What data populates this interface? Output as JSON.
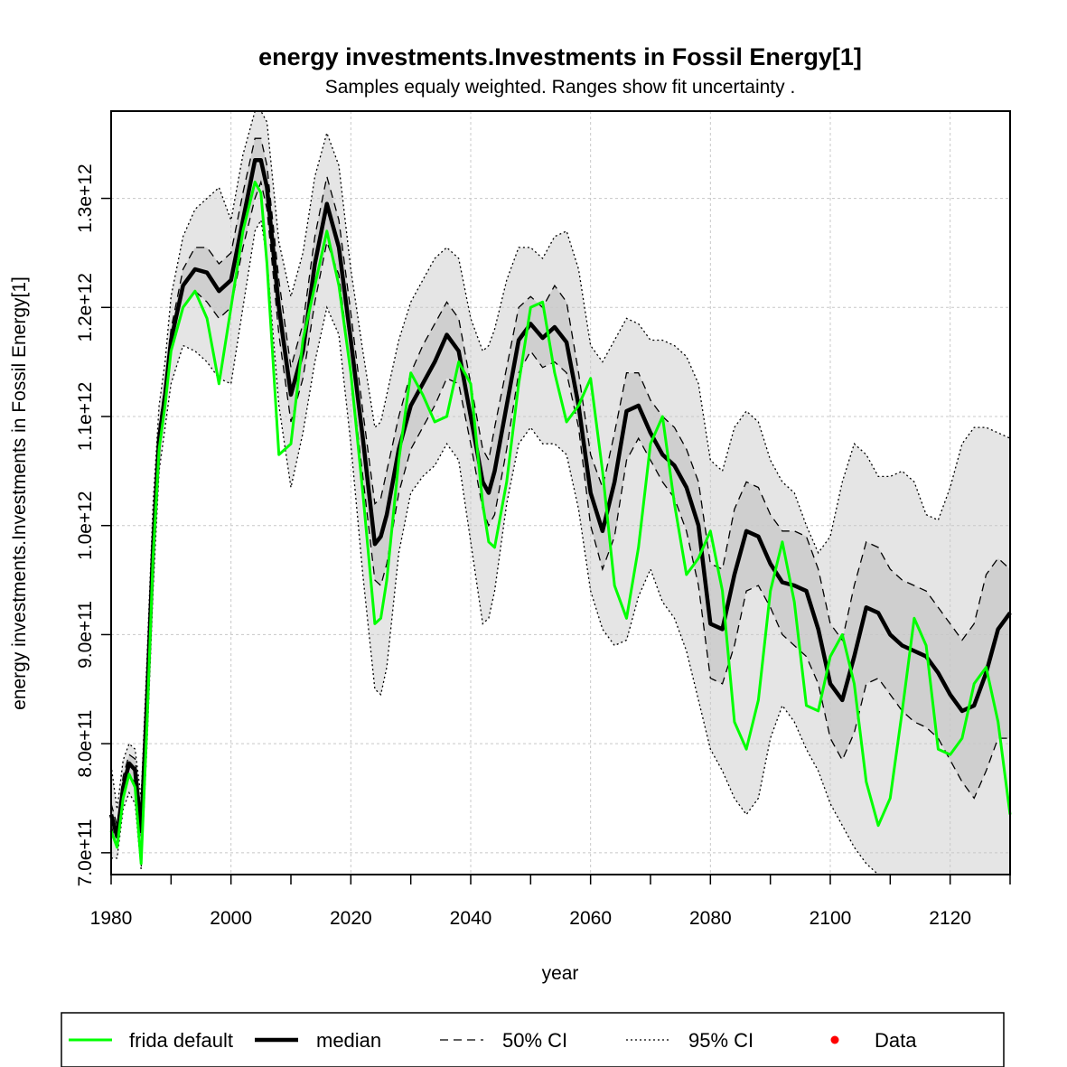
{
  "chart_data": {
    "type": "line",
    "title": "energy investments.Investments in Fossil Energy[1]",
    "subtitle": "Samples equaly weighted. Ranges show  fit uncertainty .",
    "xlabel": "year",
    "ylabel": "energy investments.Investments in Fossil Energy[1]",
    "xlim": [
      1980,
      2130
    ],
    "ylim": [
      680000000000.0,
      1380000000000.0
    ],
    "x_ticks": [
      1980,
      2000,
      2020,
      2040,
      2060,
      2080,
      2100,
      2120
    ],
    "x_tick_labels": [
      "1980",
      "2000",
      "2020",
      "2040",
      "2060",
      "2080",
      "2100",
      "2120"
    ],
    "y_ticks": [
      700000000000.0,
      800000000000.0,
      900000000000.0,
      1000000000000.0,
      1100000000000.0,
      1200000000000.0,
      1300000000000.0
    ],
    "y_tick_labels": [
      "7.0e+11",
      "8.0e+11",
      "9.0e+11",
      "1.0e+12",
      "1.1e+12",
      "1.2e+12",
      "1.3e+12"
    ],
    "grid": true,
    "legend_position": "bottom",
    "legend": [
      {
        "label": "frida default",
        "style": "green-line"
      },
      {
        "label": "median",
        "style": "thick-black-line"
      },
      {
        "label": "50% CI",
        "style": "dashed"
      },
      {
        "label": "95% CI",
        "style": "dotted"
      },
      {
        "label": "Data",
        "style": "red-dot"
      }
    ],
    "colors": {
      "frida": "#00ff00",
      "median": "#000000",
      "band95": "#e5e5e5",
      "band50": "#cfcfcf",
      "data": "#ff0000"
    },
    "x": [
      1980,
      1981,
      1982,
      1983,
      1984,
      1985,
      1986,
      1987,
      1988,
      1989,
      1990,
      1992,
      1994,
      1996,
      1998,
      2000,
      2002,
      2004,
      2005,
      2006,
      2008,
      2010,
      2012,
      2014,
      2016,
      2018,
      2020,
      2022,
      2024,
      2025,
      2026,
      2028,
      2030,
      2032,
      2034,
      2036,
      2038,
      2040,
      2042,
      2043,
      2044,
      2046,
      2048,
      2050,
      2052,
      2054,
      2056,
      2058,
      2060,
      2062,
      2064,
      2066,
      2068,
      2070,
      2072,
      2074,
      2076,
      2078,
      2080,
      2082,
      2084,
      2086,
      2088,
      2090,
      2092,
      2094,
      2096,
      2098,
      2100,
      2102,
      2104,
      2106,
      2108,
      2110,
      2112,
      2114,
      2116,
      2118,
      2120,
      2122,
      2124,
      2126,
      2128,
      2130
    ],
    "series": [
      {
        "name": "median",
        "values": [
          735000000000.0,
          715000000000.0,
          760000000000.0,
          782000000000.0,
          776000000000.0,
          720000000000.0,
          840000000000.0,
          980000000000.0,
          1080000000000.0,
          1120000000000.0,
          1170000000000.0,
          1220000000000.0,
          1235000000000.0,
          1232000000000.0,
          1215000000000.0,
          1225000000000.0,
          1280000000000.0,
          1335000000000.0,
          1335000000000.0,
          1310000000000.0,
          1200000000000.0,
          1120000000000.0,
          1160000000000.0,
          1240000000000.0,
          1295000000000.0,
          1255000000000.0,
          1170000000000.0,
          1080000000000.0,
          983000000000.0,
          990000000000.0,
          1010000000000.0,
          1070000000000.0,
          1110000000000.0,
          1130000000000.0,
          1150000000000.0,
          1175000000000.0,
          1160000000000.0,
          1100000000000.0,
          1040000000000.0,
          1030000000000.0,
          1050000000000.0,
          1110000000000.0,
          1170000000000.0,
          1185000000000.0,
          1172000000000.0,
          1182000000000.0,
          1168000000000.0,
          1110000000000.0,
          1030000000000.0,
          995000000000.0,
          1040000000000.0,
          1105000000000.0,
          1110000000000.0,
          1085000000000.0,
          1065000000000.0,
          1055000000000.0,
          1035000000000.0,
          1000000000000.0,
          910000000000.0,
          905000000000.0,
          955000000000.0,
          995000000000.0,
          990000000000.0,
          965000000000.0,
          948000000000.0,
          945000000000.0,
          940000000000.0,
          905000000000.0,
          855000000000.0,
          840000000000.0,
          880000000000.0,
          925000000000.0,
          920000000000.0,
          900000000000.0,
          890000000000.0,
          885000000000.0,
          880000000000.0,
          865000000000.0,
          845000000000.0,
          830000000000.0,
          835000000000.0,
          865000000000.0,
          905000000000.0,
          920000000000.0
        ]
      },
      {
        "name": "frida default",
        "values": [
          720000000000.0,
          705000000000.0,
          750000000000.0,
          772000000000.0,
          760000000000.0,
          690000000000.0,
          820000000000.0,
          970000000000.0,
          1070000000000.0,
          1110000000000.0,
          1160000000000.0,
          1200000000000.0,
          1215000000000.0,
          1190000000000.0,
          1130000000000.0,
          1200000000000.0,
          1270000000000.0,
          1315000000000.0,
          1305000000000.0,
          1240000000000.0,
          1065000000000.0,
          1075000000000.0,
          1170000000000.0,
          1220000000000.0,
          1270000000000.0,
          1220000000000.0,
          1140000000000.0,
          1030000000000.0,
          910000000000.0,
          915000000000.0,
          950000000000.0,
          1060000000000.0,
          1140000000000.0,
          1120000000000.0,
          1095000000000.0,
          1100000000000.0,
          1150000000000.0,
          1130000000000.0,
          1020000000000.0,
          985000000000.0,
          980000000000.0,
          1040000000000.0,
          1130000000000.0,
          1200000000000.0,
          1205000000000.0,
          1140000000000.0,
          1095000000000.0,
          1110000000000.0,
          1135000000000.0,
          1050000000000.0,
          945000000000.0,
          915000000000.0,
          980000000000.0,
          1075000000000.0,
          1100000000000.0,
          1020000000000.0,
          955000000000.0,
          970000000000.0,
          995000000000.0,
          940000000000.0,
          820000000000.0,
          795000000000.0,
          840000000000.0,
          940000000000.0,
          985000000000.0,
          930000000000.0,
          835000000000.0,
          830000000000.0,
          880000000000.0,
          900000000000.0,
          855000000000.0,
          765000000000.0,
          725000000000.0,
          750000000000.0,
          830000000000.0,
          915000000000.0,
          890000000000.0,
          795000000000.0,
          790000000000.0,
          805000000000.0,
          855000000000.0,
          870000000000.0,
          820000000000.0,
          735000000000.0
        ]
      },
      {
        "name": "50% CI lower",
        "values": [
          725000000000.0,
          705000000000.0,
          750000000000.0,
          770000000000.0,
          765000000000.0,
          705000000000.0,
          820000000000.0,
          960000000000.0,
          1070000000000.0,
          1110000000000.0,
          1160000000000.0,
          1200000000000.0,
          1215000000000.0,
          1205000000000.0,
          1190000000000.0,
          1200000000000.0,
          1255000000000.0,
          1300000000000.0,
          1315000000000.0,
          1290000000000.0,
          1175000000000.0,
          1095000000000.0,
          1135000000000.0,
          1205000000000.0,
          1260000000000.0,
          1230000000000.0,
          1140000000000.0,
          1045000000000.0,
          950000000000.0,
          945000000000.0,
          965000000000.0,
          1030000000000.0,
          1070000000000.0,
          1090000000000.0,
          1110000000000.0,
          1135000000000.0,
          1130000000000.0,
          1075000000000.0,
          1015000000000.0,
          1000000000000.0,
          1010000000000.0,
          1070000000000.0,
          1140000000000.0,
          1160000000000.0,
          1145000000000.0,
          1150000000000.0,
          1140000000000.0,
          1090000000000.0,
          1000000000000.0,
          960000000000.0,
          990000000000.0,
          1060000000000.0,
          1080000000000.0,
          1060000000000.0,
          1040000000000.0,
          1025000000000.0,
          995000000000.0,
          945000000000.0,
          860000000000.0,
          855000000000.0,
          890000000000.0,
          940000000000.0,
          945000000000.0,
          925000000000.0,
          900000000000.0,
          890000000000.0,
          880000000000.0,
          855000000000.0,
          805000000000.0,
          785000000000.0,
          810000000000.0,
          855000000000.0,
          860000000000.0,
          845000000000.0,
          830000000000.0,
          820000000000.0,
          815000000000.0,
          805000000000.0,
          785000000000.0,
          765000000000.0,
          750000000000.0,
          775000000000.0,
          805000000000.0,
          805000000000.0
        ]
      },
      {
        "name": "50% CI upper",
        "values": [
          745000000000.0,
          725000000000.0,
          770000000000.0,
          790000000000.0,
          786000000000.0,
          735000000000.0,
          860000000000.0,
          995000000000.0,
          1090000000000.0,
          1130000000000.0,
          1180000000000.0,
          1235000000000.0,
          1255000000000.0,
          1255000000000.0,
          1240000000000.0,
          1250000000000.0,
          1305000000000.0,
          1355000000000.0,
          1355000000000.0,
          1330000000000.0,
          1225000000000.0,
          1145000000000.0,
          1185000000000.0,
          1265000000000.0,
          1320000000000.0,
          1280000000000.0,
          1195000000000.0,
          1105000000000.0,
          1020000000000.0,
          1025000000000.0,
          1050000000000.0,
          1100000000000.0,
          1140000000000.0,
          1165000000000.0,
          1185000000000.0,
          1205000000000.0,
          1190000000000.0,
          1130000000000.0,
          1070000000000.0,
          1060000000000.0,
          1090000000000.0,
          1145000000000.0,
          1200000000000.0,
          1210000000000.0,
          1200000000000.0,
          1220000000000.0,
          1205000000000.0,
          1140000000000.0,
          1065000000000.0,
          1035000000000.0,
          1085000000000.0,
          1140000000000.0,
          1140000000000.0,
          1115000000000.0,
          1100000000000.0,
          1090000000000.0,
          1070000000000.0,
          1040000000000.0,
          965000000000.0,
          960000000000.0,
          1015000000000.0,
          1040000000000.0,
          1035000000000.0,
          1010000000000.0,
          995000000000.0,
          995000000000.0,
          990000000000.0,
          960000000000.0,
          910000000000.0,
          895000000000.0,
          945000000000.0,
          985000000000.0,
          980000000000.0,
          960000000000.0,
          950000000000.0,
          945000000000.0,
          940000000000.0,
          925000000000.0,
          910000000000.0,
          895000000000.0,
          910000000000.0,
          955000000000.0,
          970000000000.0,
          960000000000.0
        ]
      },
      {
        "name": "95% CI lower",
        "values": [
          695000000000.0,
          695000000000.0,
          740000000000.0,
          755000000000.0,
          745000000000.0,
          685000000000.0,
          800000000000.0,
          940000000000.0,
          1050000000000.0,
          1090000000000.0,
          1130000000000.0,
          1165000000000.0,
          1160000000000.0,
          1150000000000.0,
          1135000000000.0,
          1130000000000.0,
          1200000000000.0,
          1270000000000.0,
          1280000000000.0,
          1245000000000.0,
          1110000000000.0,
          1035000000000.0,
          1085000000000.0,
          1150000000000.0,
          1200000000000.0,
          1175000000000.0,
          1075000000000.0,
          955000000000.0,
          850000000000.0,
          845000000000.0,
          870000000000.0,
          975000000000.0,
          1030000000000.0,
          1045000000000.0,
          1055000000000.0,
          1075000000000.0,
          1060000000000.0,
          985000000000.0,
          910000000000.0,
          915000000000.0,
          940000000000.0,
          1020000000000.0,
          1075000000000.0,
          1090000000000.0,
          1075000000000.0,
          1075000000000.0,
          1065000000000.0,
          1015000000000.0,
          940000000000.0,
          905000000000.0,
          890000000000.0,
          895000000000.0,
          935000000000.0,
          960000000000.0,
          930000000000.0,
          915000000000.0,
          885000000000.0,
          840000000000.0,
          795000000000.0,
          775000000000.0,
          750000000000.0,
          735000000000.0,
          750000000000.0,
          805000000000.0,
          835000000000.0,
          820000000000.0,
          795000000000.0,
          775000000000.0,
          745000000000.0,
          725000000000.0,
          705000000000.0,
          690000000000.0,
          680000000000.0,
          680000000000.0,
          680000000000.0,
          680000000000.0,
          680000000000.0,
          680000000000.0,
          680000000000.0,
          680000000000.0,
          680000000000.0,
          680000000000.0,
          680000000000.0,
          680000000000.0
        ]
      },
      {
        "name": "95% CI upper",
        "values": [
          780000000000.0,
          740000000000.0,
          785000000000.0,
          800000000000.0,
          795000000000.0,
          750000000000.0,
          880000000000.0,
          1020000000000.0,
          1110000000000.0,
          1150000000000.0,
          1210000000000.0,
          1265000000000.0,
          1290000000000.0,
          1300000000000.0,
          1310000000000.0,
          1280000000000.0,
          1340000000000.0,
          1380000000000.0,
          1380000000000.0,
          1370000000000.0,
          1260000000000.0,
          1210000000000.0,
          1250000000000.0,
          1320000000000.0,
          1360000000000.0,
          1330000000000.0,
          1235000000000.0,
          1160000000000.0,
          1090000000000.0,
          1095000000000.0,
          1120000000000.0,
          1170000000000.0,
          1205000000000.0,
          1225000000000.0,
          1245000000000.0,
          1255000000000.0,
          1245000000000.0,
          1190000000000.0,
          1160000000000.0,
          1165000000000.0,
          1180000000000.0,
          1225000000000.0,
          1255000000000.0,
          1255000000000.0,
          1245000000000.0,
          1265000000000.0,
          1270000000000.0,
          1235000000000.0,
          1165000000000.0,
          1150000000000.0,
          1170000000000.0,
          1190000000000.0,
          1185000000000.0,
          1170000000000.0,
          1170000000000.0,
          1165000000000.0,
          1155000000000.0,
          1130000000000.0,
          1060000000000.0,
          1050000000000.0,
          1090000000000.0,
          1105000000000.0,
          1095000000000.0,
          1060000000000.0,
          1040000000000.0,
          1030000000000.0,
          1000000000000.0,
          975000000000.0,
          990000000000.0,
          1040000000000.0,
          1075000000000.0,
          1065000000000.0,
          1045000000000.0,
          1045000000000.0,
          1050000000000.0,
          1040000000000.0,
          1010000000000.0,
          1005000000000.0,
          1035000000000.0,
          1075000000000.0,
          1090000000000.0,
          1090000000000.0,
          1085000000000.0,
          1080000000000.0
        ]
      }
    ]
  }
}
